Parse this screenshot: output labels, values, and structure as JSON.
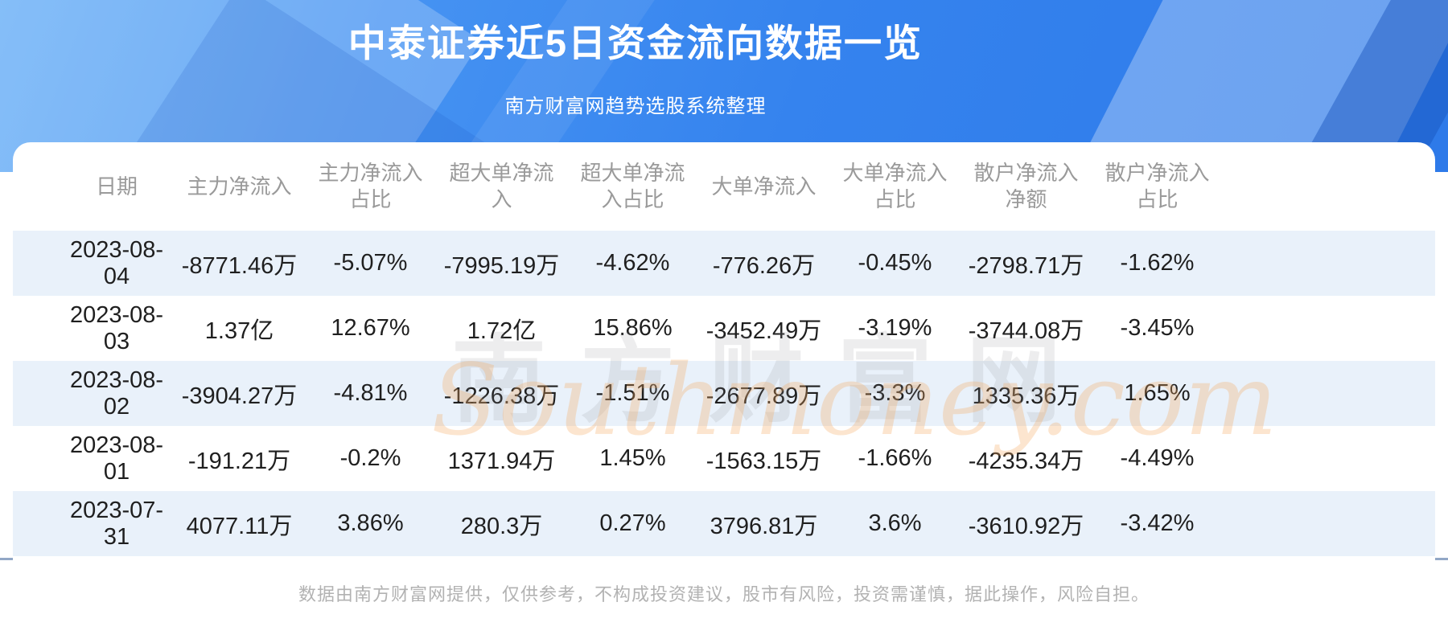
{
  "header": {
    "title": "中泰证券近5日资金流向数据一览",
    "subtitle": "南方财富网趋势选股系统整理"
  },
  "table": {
    "columns": [
      "日期",
      "主力净流入",
      "主力净流入\n占比",
      "超大单净流\n入",
      "超大单净流\n入占比",
      "大单净流入",
      "大单净流入\n占比",
      "散户净流入\n净额",
      "散户净流入\n占比"
    ],
    "rows": [
      {
        "cells": [
          "2023-08-04",
          "-8771.46万",
          "-5.07%",
          "-7995.19万",
          "-4.62%",
          "-776.26万",
          "-0.45%",
          "-2798.71万",
          "-1.62%"
        ]
      },
      {
        "cells": [
          "2023-08-03",
          "1.37亿",
          "12.67%",
          "1.72亿",
          "15.86%",
          "-3452.49万",
          "-3.19%",
          "-3744.08万",
          "-3.45%"
        ]
      },
      {
        "cells": [
          "2023-08-02",
          "-3904.27万",
          "-4.81%",
          "-1226.38万",
          "-1.51%",
          "-2677.89万",
          "-3.3%",
          "1335.36万",
          "1.65%"
        ]
      },
      {
        "cells": [
          "2023-08-01",
          "-191.21万",
          "-0.2%",
          "1371.94万",
          "1.45%",
          "-1563.15万",
          "-1.66%",
          "-4235.34万",
          "-4.49%"
        ]
      },
      {
        "cells": [
          "2023-07-31",
          "4077.11万",
          "3.86%",
          "280.3万",
          "0.27%",
          "3796.81万",
          "3.6%",
          "-3610.92万",
          "-3.42%"
        ]
      }
    ]
  },
  "watermark": {
    "cn": "南方财富网",
    "en": "Southmoney.com"
  },
  "footer": {
    "disclaimer": "数据由南方财富网提供，仅供参考，不构成投资建议，股市有风险，投资需谨慎，据此操作，风险自担。"
  },
  "colors": {
    "banner_blue": "#3583ee",
    "banner_light": "#63acf6",
    "stripe": "#e9f1fa",
    "divider": "#92a7c6",
    "header_text": "#9a9a9a",
    "data_text": "#1f1f1f",
    "watermark_orange": "#f6aa60"
  },
  "chart_data": {
    "type": "table",
    "title": "中泰证券近5日资金流向数据一览",
    "subtitle": "南方财富网趋势选股系统整理",
    "columns": [
      "日期",
      "主力净流入",
      "主力净流入占比",
      "超大单净流入",
      "超大单净流入占比",
      "大单净流入",
      "大单净流入占比",
      "散户净流入净额",
      "散户净流入占比"
    ],
    "rows": [
      [
        "2023-08-04",
        "-8771.46万",
        "-5.07%",
        "-7995.19万",
        "-4.62%",
        "-776.26万",
        "-0.45%",
        "-2798.71万",
        "-1.62%"
      ],
      [
        "2023-08-03",
        "1.37亿",
        "12.67%",
        "1.72亿",
        "15.86%",
        "-3452.49万",
        "-3.19%",
        "-3744.08万",
        "-3.45%"
      ],
      [
        "2023-08-02",
        "-3904.27万",
        "-4.81%",
        "-1226.38万",
        "-1.51%",
        "-2677.89万",
        "-3.3%",
        "1335.36万",
        "1.65%"
      ],
      [
        "2023-08-01",
        "-191.21万",
        "-0.2%",
        "1371.94万",
        "1.45%",
        "-1563.15万",
        "-1.66%",
        "-4235.34万",
        "-4.49%"
      ],
      [
        "2023-07-31",
        "4077.11万",
        "3.86%",
        "280.3万",
        "0.27%",
        "3796.81万",
        "3.6%",
        "-3610.92万",
        "-3.42%"
      ]
    ]
  }
}
